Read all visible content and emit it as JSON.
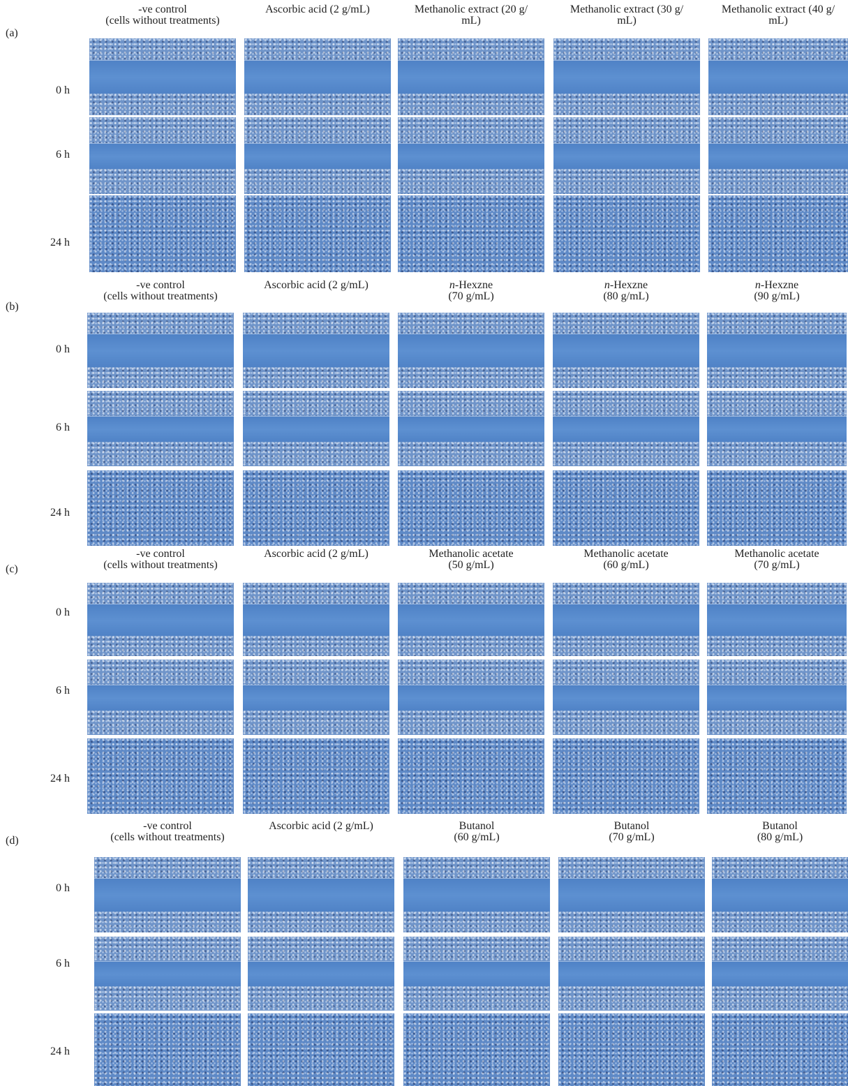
{
  "panels": [
    {
      "label": "(a)",
      "time_labels": [
        "0 h",
        "6 h",
        "24 h"
      ],
      "columns": [
        {
          "title_lines": [
            "-ve control",
            "(cells without treatments)"
          ]
        },
        {
          "title_lines": [
            "Ascorbic acid (2 g/mL)"
          ]
        },
        {
          "title_lines": [
            "Methanolic extract (20 g/",
            "mL)"
          ]
        },
        {
          "title_lines": [
            "Methanolic extract (30 g/",
            "mL)"
          ]
        },
        {
          "title_lines": [
            "Methanolic extract (40 g/",
            "mL)"
          ]
        }
      ]
    },
    {
      "label": "(b)",
      "time_labels": [
        "0 h",
        "6 h",
        "24 h"
      ],
      "columns": [
        {
          "title_lines": [
            "-ve control",
            "(cells without treatments)"
          ]
        },
        {
          "title_lines": [
            "Ascorbic acid (2 g/mL)"
          ]
        },
        {
          "title_lines": [
            "n-Hexzne",
            "(70 g/mL)"
          ]
        },
        {
          "title_lines": [
            "n-Hexzne",
            "(80 g/mL)"
          ]
        },
        {
          "title_lines": [
            "n-Hexzne",
            "(90 g/mL)"
          ]
        }
      ]
    },
    {
      "label": "(c)",
      "time_labels": [
        "0 h",
        "6 h",
        "24 h"
      ],
      "columns": [
        {
          "title_lines": [
            "-ve control",
            "(cells without treatments)"
          ]
        },
        {
          "title_lines": [
            "Ascorbic acid (2 g/mL)"
          ]
        },
        {
          "title_lines": [
            "Methanolic acetate",
            "(50 g/mL)"
          ]
        },
        {
          "title_lines": [
            "Methanolic acetate",
            "(60 g/mL)"
          ]
        },
        {
          "title_lines": [
            "Methanolic acetate",
            "(70 g/mL)"
          ]
        }
      ]
    },
    {
      "label": "(d)",
      "time_labels": [
        "0 h",
        "6 h",
        "24 h"
      ],
      "columns": [
        {
          "title_lines": [
            "-ve control",
            "(cells without treatments)"
          ]
        },
        {
          "title_lines": [
            "Ascorbic acid (2 g/mL)"
          ]
        },
        {
          "title_lines": [
            "Butanol",
            "(60 g/mL)"
          ]
        },
        {
          "title_lines": [
            "Butanol",
            "(70 g/mL)"
          ]
        },
        {
          "title_lines": [
            "Butanol",
            "(80 g/mL)"
          ]
        }
      ]
    }
  ]
}
